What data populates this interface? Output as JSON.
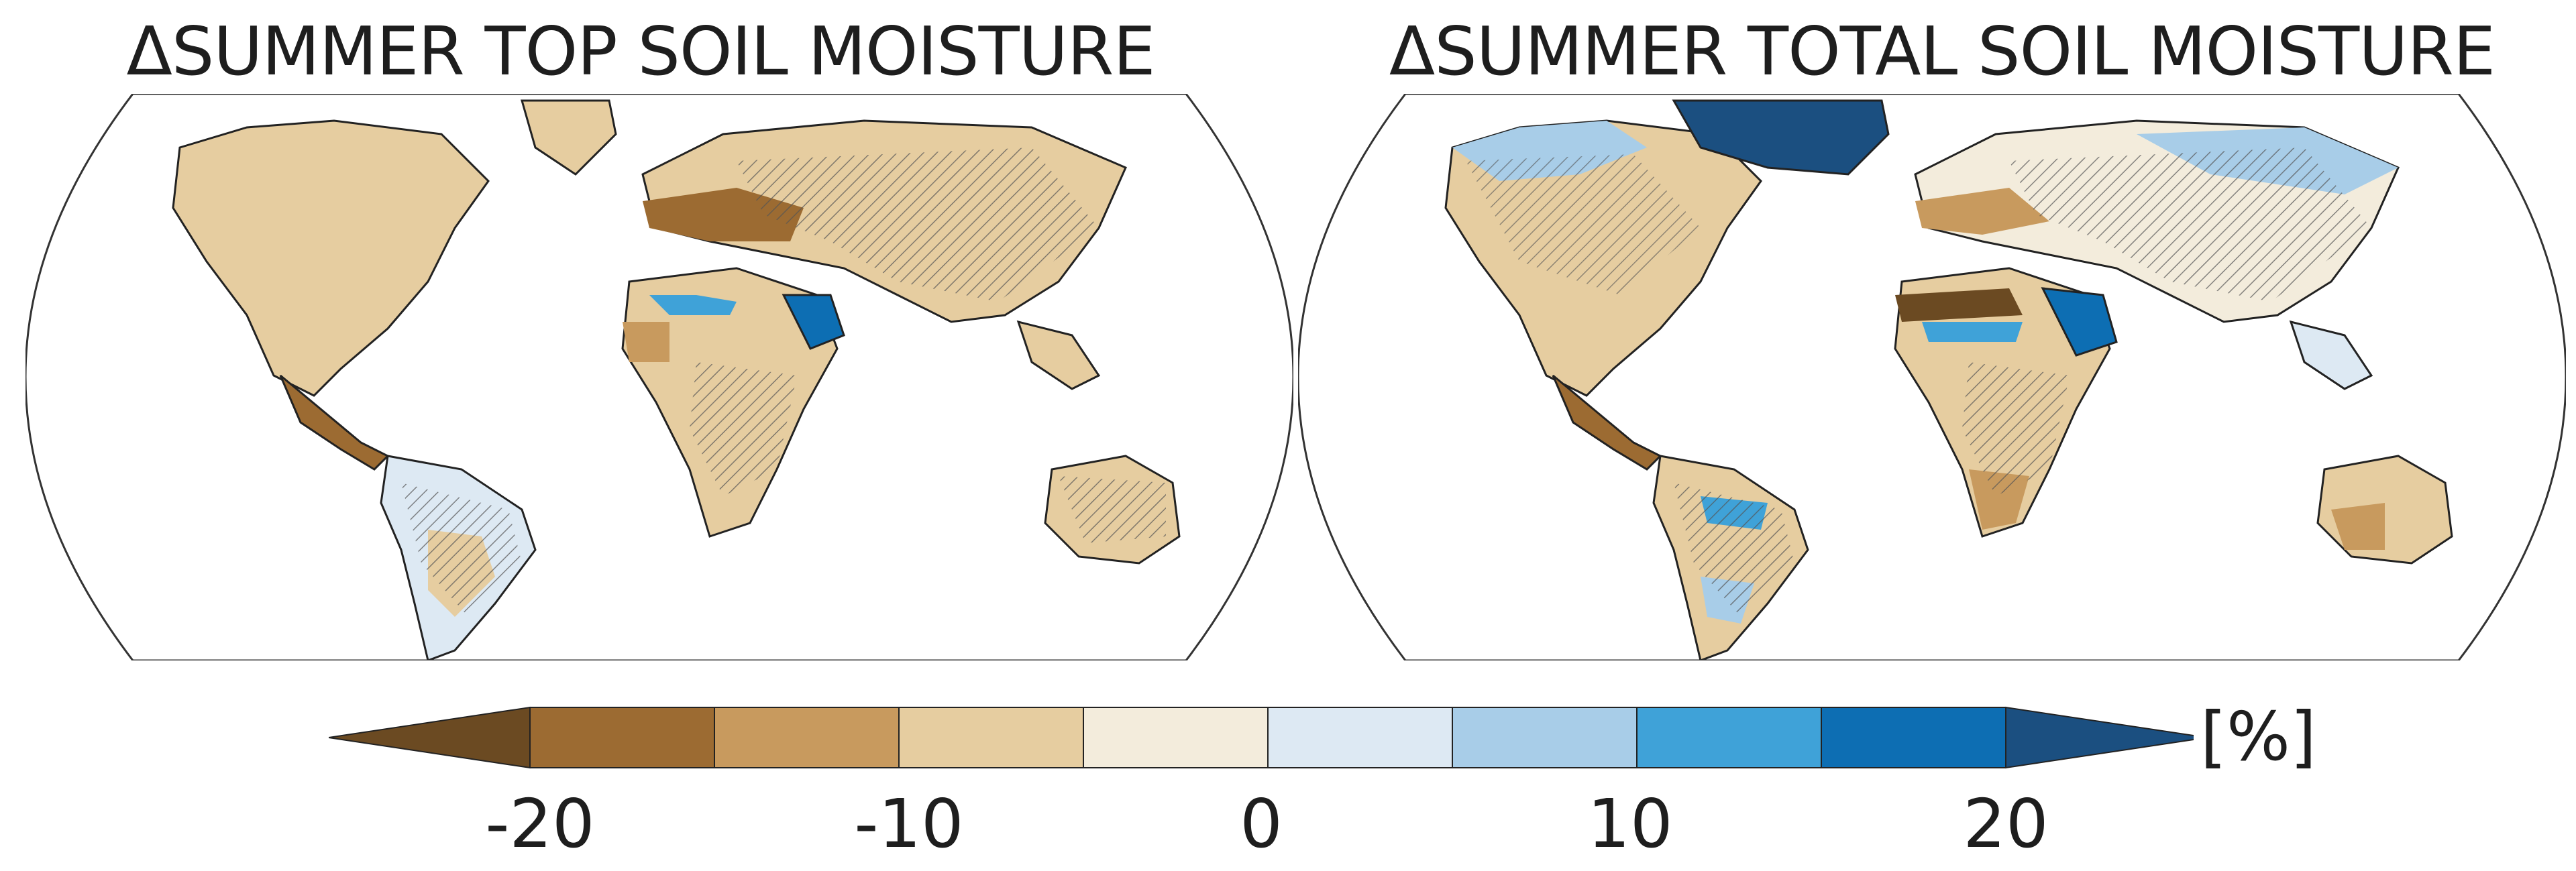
{
  "panels": [
    {
      "title": "ΔSUMMER TOP SOIL MOISTURE",
      "map_variable": "summer top soil moisture change"
    },
    {
      "title": "ΔSUMMER TOTAL SOIL MOISTURE",
      "map_variable": "summer total soil moisture change"
    }
  ],
  "colorbar": {
    "unit": "[%]",
    "ticks": [
      "-20",
      "-10",
      "0",
      "10",
      "20"
    ],
    "tick_values": [
      -20,
      -10,
      0,
      10,
      20
    ],
    "bins": [
      -25,
      -20,
      -15,
      -10,
      -5,
      0,
      5,
      10,
      15,
      20,
      25
    ],
    "colors": [
      "#6b4a22",
      "#9c6b32",
      "#c89a5e",
      "#e6cda0",
      "#f3ecdc",
      "#dde9f3",
      "#a8cde8",
      "#3fa2d8",
      "#0d6eb3",
      "#1b4f80"
    ],
    "extend": "both"
  },
  "colors": {
    "land_outline": "#222222",
    "frame": "#333333",
    "hatch": "#555555"
  }
}
